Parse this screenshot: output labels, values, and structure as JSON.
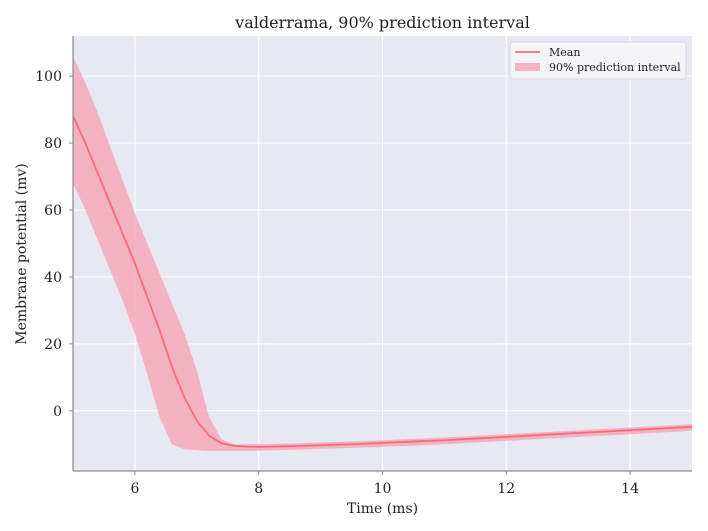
{
  "chart_data": {
    "type": "area",
    "title": "valderrama, 90% prediction interval",
    "xlabel": "Time (ms)",
    "ylabel": "Membrane potential (mv)",
    "xlim": [
      5,
      15
    ],
    "ylim": [
      -18,
      112
    ],
    "x_ticks": [
      6,
      8,
      10,
      12,
      14
    ],
    "y_ticks": [
      0,
      20,
      40,
      60,
      80,
      100
    ],
    "grid": true,
    "legend_position": "top-right",
    "legend": [
      "Mean",
      "90% prediction interval"
    ],
    "colors": {
      "mean": "#f56c77",
      "interval": "#f3a8ba",
      "background": "#e8e8f2",
      "grid": "#ffffff",
      "axis": "#8c8c8c"
    },
    "series": [
      {
        "name": "Mean",
        "x": [
          5,
          5.2,
          5.4,
          5.6,
          5.8,
          6,
          6.2,
          6.4,
          6.6,
          6.8,
          7,
          7.2,
          7.4,
          7.6,
          7.8,
          8,
          8.5,
          9,
          9.5,
          10,
          10.5,
          11,
          11.5,
          12,
          12.5,
          13,
          13.5,
          14,
          14.5,
          15
        ],
        "y": [
          88,
          80,
          71,
          62,
          53,
          44,
          34,
          24,
          13,
          4,
          -3,
          -7.5,
          -9.7,
          -10.5,
          -10.7,
          -10.8,
          -10.6,
          -10.3,
          -10,
          -9.6,
          -9.2,
          -8.8,
          -8.3,
          -7.8,
          -7.3,
          -6.8,
          -6.3,
          -5.8,
          -5.3,
          -4.8
        ]
      },
      {
        "name": "90% prediction interval",
        "x": [
          5,
          5.2,
          5.4,
          5.6,
          5.8,
          6,
          6.2,
          6.4,
          6.6,
          6.8,
          7,
          7.2,
          7.4,
          7.6,
          7.8,
          8,
          8.5,
          9,
          9.5,
          10,
          10.5,
          11,
          11.5,
          12,
          12.5,
          13,
          13.5,
          14,
          14.5,
          15
        ],
        "lower": [
          68,
          60,
          51,
          42,
          33,
          23,
          11,
          -2,
          -10,
          -11.5,
          -11.8,
          -12,
          -12,
          -12,
          -12,
          -11.9,
          -11.7,
          -11.4,
          -11.1,
          -10.8,
          -10.4,
          -10,
          -9.5,
          -9,
          -8.5,
          -8,
          -7.5,
          -7,
          -6.5,
          -6
        ],
        "upper": [
          106,
          98,
          89,
          79,
          69,
          59,
          50,
          41,
          32,
          23,
          12,
          -2,
          -8.5,
          -10,
          -10,
          -10,
          -9.8,
          -9.5,
          -9.2,
          -8.8,
          -8.4,
          -8,
          -7.5,
          -7,
          -6.5,
          -6,
          -5.5,
          -5,
          -4.5,
          -4
        ]
      }
    ]
  }
}
